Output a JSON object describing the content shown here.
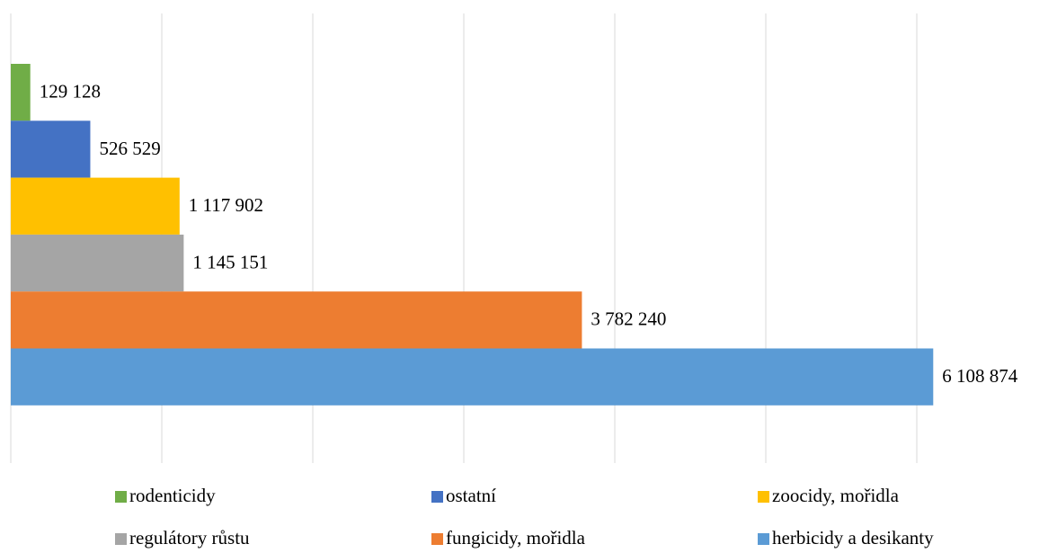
{
  "chart_data": {
    "type": "bar",
    "orientation": "horizontal",
    "xlim": [
      0,
      6500000
    ],
    "xticks": [
      0,
      1000000,
      2000000,
      3000000,
      4000000,
      5000000,
      6000000
    ],
    "grid": true,
    "legend": "bottom",
    "series": [
      {
        "name": "rodenticidy",
        "color": "#70ad47",
        "values": [
          129128
        ],
        "value_labels": [
          "129 128"
        ]
      },
      {
        "name": "ostatní",
        "color": "#4472c4",
        "values": [
          526529
        ],
        "value_labels": [
          "526 529"
        ]
      },
      {
        "name": "zoocidy, mořidla",
        "color": "#ffc000",
        "values": [
          1117902
        ],
        "value_labels": [
          "1 117 902"
        ]
      },
      {
        "name": "regulátory růstu",
        "color": "#a5a5a5",
        "values": [
          1145151
        ],
        "value_labels": [
          "1 145 151"
        ]
      },
      {
        "name": "fungicidy, mořidla",
        "color": "#ed7d31",
        "values": [
          3782240
        ],
        "value_labels": [
          "3 782 240"
        ]
      },
      {
        "name": "herbicidy a desikanty",
        "color": "#5b9bd5",
        "values": [
          6108874
        ],
        "value_labels": [
          "6 108 874"
        ]
      }
    ]
  }
}
